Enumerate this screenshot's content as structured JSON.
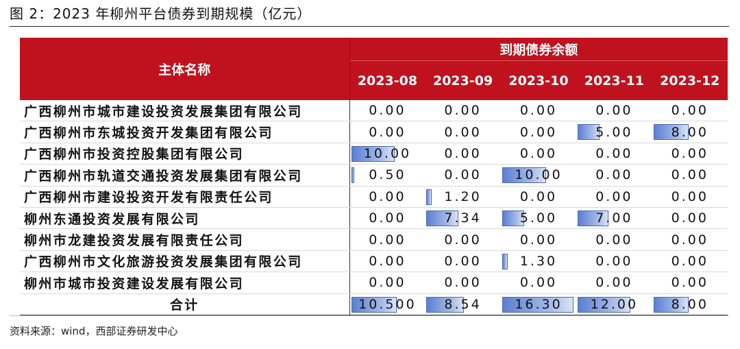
{
  "title": "图 2：2023 年柳州平台债券到期规模（亿元）",
  "table": {
    "name_header": "主体名称",
    "group_header": "到期债券余额",
    "months": [
      "2023-08",
      "2023-09",
      "2023-10",
      "2023-11",
      "2023-12"
    ],
    "max_value": 16.3,
    "rows": [
      {
        "name": "广西柳州市城市建设投资发展集团有限公司",
        "display": [
          "0.00",
          "0.00",
          "0.00",
          "0.00",
          "0.00"
        ],
        "values": [
          0,
          0,
          0,
          0,
          0
        ]
      },
      {
        "name": "广西柳州市东城投资开发集团有限公司",
        "display": [
          "0.00",
          "0.00",
          "0.00",
          "5.00",
          "8.00"
        ],
        "values": [
          0,
          0,
          0,
          5,
          8
        ]
      },
      {
        "name": "广西柳州市投资控股集团有限公司",
        "display": [
          "10.00",
          "0.00",
          "0.00",
          "0.00",
          "0.00"
        ],
        "values": [
          10,
          0,
          0,
          0,
          0
        ]
      },
      {
        "name": "广西柳州市轨道交通投资发展集团有限公司",
        "display": [
          "0.50",
          "0.00",
          "10.00",
          "0.00",
          "0.00"
        ],
        "values": [
          0.5,
          0,
          10,
          0,
          0
        ]
      },
      {
        "name": "广西柳州市建设投资开发有限责任公司",
        "display": [
          "0.00",
          "1.20",
          "0.00",
          "0.00",
          "0.00"
        ],
        "values": [
          0,
          1.2,
          0,
          0,
          0
        ]
      },
      {
        "name": "柳州东通投资发展有限公司",
        "display": [
          "0.00",
          "7.34",
          "5.00",
          "7.00",
          "0.00"
        ],
        "values": [
          0,
          7.34,
          5,
          7,
          0
        ]
      },
      {
        "name": "柳州市龙建投资发展有限责任公司",
        "display": [
          "0.00",
          "0.00",
          "0.00",
          "0.00",
          "0.00"
        ],
        "values": [
          0,
          0,
          0,
          0,
          0
        ]
      },
      {
        "name": "广西柳州市文化旅游投资发展集团有限公司",
        "display": [
          "0.00",
          "0.00",
          "1.30",
          "0.00",
          "0.00"
        ],
        "values": [
          0,
          0,
          1.3,
          0,
          0
        ]
      },
      {
        "name": "柳州市城市投资建设发展有限公司",
        "display": [
          "0.00",
          "0.00",
          "0.00",
          "0.00",
          "0.00"
        ],
        "values": [
          0,
          0,
          0,
          0,
          0
        ]
      }
    ],
    "total": {
      "name": "合计",
      "display": [
        "10.500",
        "8.54",
        "16.30",
        "12.00",
        "8.00"
      ],
      "values": [
        10.5,
        8.54,
        16.3,
        12,
        8
      ]
    }
  },
  "source": "资料来源：wind，西部证券研发中心",
  "colors": {
    "header_bg": "#c0121e",
    "header_text": "#ffffff",
    "bar": "#5b7fd3"
  }
}
